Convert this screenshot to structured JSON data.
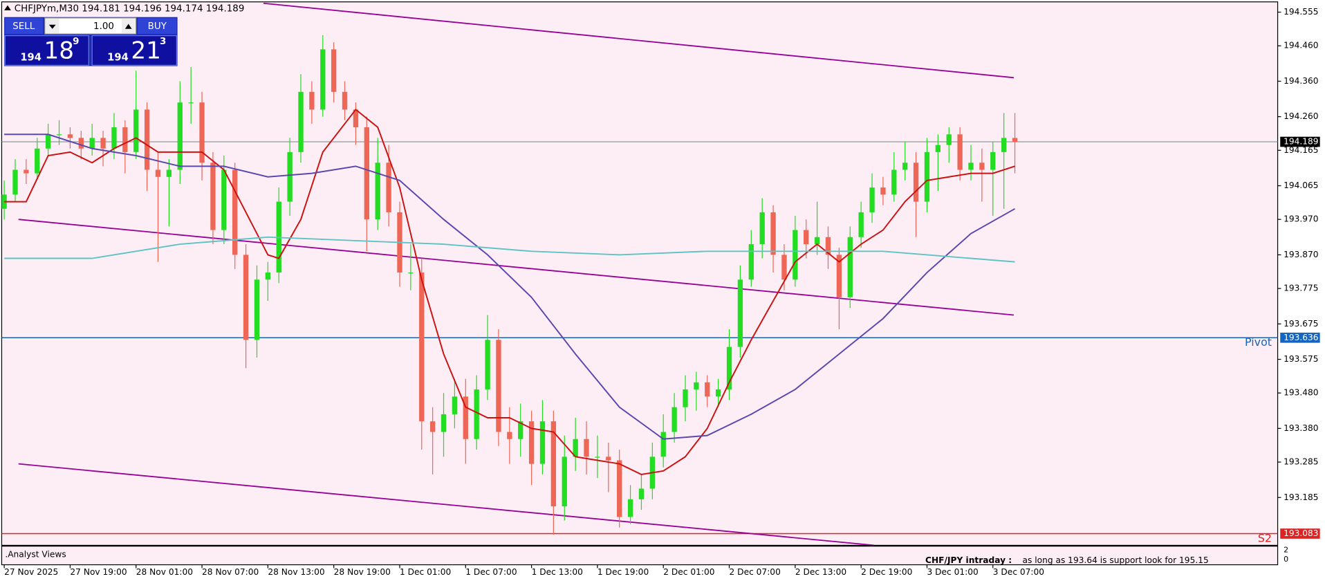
{
  "terminal": {
    "header": "CHFJPYm,M30  194.181 194.196 194.174 194.189",
    "sell": "SELL",
    "buy": "BUY",
    "lot": "1.00",
    "sell_big": "194",
    "sell_main": "18",
    "sell_sup": "9",
    "buy_big": "194",
    "buy_main": "21",
    "buy_sup": "3"
  },
  "indicator_window": {
    "title": ".Analyst Views",
    "scale_labels": [
      "2",
      "0"
    ],
    "annotation_title": "CHF/JPY intraday :",
    "annotation": "as long as 193.64 is support look for 195.15"
  },
  "chart_data": {
    "type": "candlestick",
    "up_color": "#22dd22",
    "down_color": "#ee6655",
    "ylim": [
      193.05,
      194.584
    ],
    "yticks": [
      194.555,
      {
        "value": 194.46,
        "label": "194.460"
      },
      {
        "value": 194.36,
        "label": "194.360"
      },
      {
        "value": 194.26,
        "label": "194.260"
      },
      194.165,
      194.065,
      {
        "value": 193.97,
        "label": "193.970"
      },
      {
        "value": 193.87,
        "label": "193.870"
      },
      193.775,
      193.675,
      193.575,
      {
        "value": 193.48,
        "label": "193.480"
      },
      {
        "value": 193.38,
        "label": "193.380"
      },
      193.285,
      193.185
    ],
    "categories": [
      "27 Nov 2025",
      null,
      null,
      null,
      null,
      null,
      "27 Nov 19:00",
      null,
      null,
      null,
      null,
      null,
      "28 Nov 01:00",
      null,
      null,
      null,
      null,
      null,
      "28 Nov 07:00",
      null,
      null,
      null,
      null,
      null,
      "28 Nov 13:00",
      null,
      null,
      null,
      null,
      null,
      "28 Nov 19:00",
      null,
      null,
      null,
      null,
      null,
      "1 Dec 01:00",
      null,
      null,
      null,
      null,
      null,
      "1 Dec 07:00",
      null,
      null,
      null,
      null,
      null,
      "1 Dec 13:00",
      null,
      null,
      null,
      null,
      null,
      "1 Dec 19:00",
      null,
      null,
      null,
      null,
      null,
      "2 Dec 01:00",
      null,
      null,
      null,
      null,
      null,
      "2 Dec 07:00",
      null,
      null,
      null,
      null,
      null,
      "2 Dec 13:00",
      null,
      null,
      null,
      null,
      null,
      "2 Dec 19:00",
      null,
      null,
      null,
      null,
      null,
      "3 Dec 01:00",
      null,
      null,
      null,
      null,
      null,
      "3 Dec 07:00",
      null,
      null
    ],
    "open": [
      194.0,
      194.04,
      194.11,
      194.1,
      194.17,
      194.21,
      194.21,
      194.2,
      194.17,
      194.2,
      194.17,
      194.23,
      194.16,
      194.28,
      194.11,
      194.09,
      194.11,
      194.3,
      194.3,
      194.13,
      193.94,
      194.11,
      193.87,
      193.63,
      193.8,
      193.82,
      194.02,
      194.16,
      194.33,
      194.28,
      194.45,
      194.33,
      194.28,
      194.23,
      193.97,
      194.13,
      193.99,
      193.82,
      193.82,
      193.4,
      193.37,
      193.42,
      193.47,
      193.35,
      193.49,
      193.63,
      193.37,
      193.35,
      193.4,
      193.28,
      193.4,
      193.16,
      193.3,
      193.35,
      193.3,
      193.3,
      193.29,
      193.13,
      193.18,
      193.21,
      193.3,
      193.37,
      193.44,
      193.49,
      193.51,
      193.47,
      193.49,
      193.61,
      193.8,
      193.9,
      193.99,
      193.87,
      193.8,
      193.94,
      193.9,
      193.92,
      193.87,
      193.75,
      193.92,
      193.99,
      194.06,
      194.04,
      194.11,
      194.13,
      194.02,
      194.16,
      194.18,
      194.21,
      194.11,
      194.13,
      194.11,
      194.16,
      194.2
    ],
    "high": [
      194.08,
      194.14,
      194.14,
      194.2,
      194.24,
      194.25,
      194.23,
      194.22,
      194.24,
      194.22,
      194.27,
      194.25,
      194.39,
      194.3,
      194.16,
      194.14,
      194.36,
      194.4,
      194.33,
      194.16,
      194.15,
      194.13,
      193.9,
      193.84,
      193.85,
      194.06,
      194.2,
      194.38,
      194.36,
      194.49,
      194.47,
      194.36,
      194.3,
      194.26,
      194.2,
      194.18,
      194.02,
      193.9,
      193.86,
      193.44,
      193.48,
      193.52,
      193.52,
      193.53,
      193.7,
      193.66,
      193.44,
      193.45,
      193.43,
      193.46,
      193.43,
      193.36,
      193.41,
      193.4,
      193.36,
      193.34,
      193.32,
      193.22,
      193.25,
      193.34,
      193.42,
      193.48,
      193.53,
      193.54,
      193.53,
      193.52,
      193.66,
      193.84,
      193.94,
      194.03,
      194.01,
      193.9,
      193.98,
      193.97,
      194.02,
      193.95,
      193.89,
      193.95,
      194.02,
      194.1,
      194.09,
      194.16,
      194.19,
      194.16,
      194.2,
      194.21,
      194.23,
      194.23,
      194.18,
      194.17,
      194.19,
      194.27,
      194.27
    ],
    "low": [
      193.97,
      194.02,
      194.07,
      194.08,
      194.15,
      194.18,
      194.17,
      194.14,
      194.15,
      194.12,
      194.14,
      194.1,
      194.14,
      194.05,
      193.85,
      193.95,
      194.07,
      194.24,
      194.08,
      193.9,
      193.9,
      193.83,
      193.55,
      193.58,
      193.74,
      193.79,
      193.98,
      194.13,
      194.24,
      194.26,
      194.3,
      194.25,
      194.18,
      193.88,
      193.94,
      193.95,
      193.78,
      193.77,
      193.32,
      193.25,
      193.3,
      193.38,
      193.28,
      193.32,
      193.46,
      193.33,
      193.28,
      193.3,
      193.22,
      193.25,
      193.08,
      193.12,
      193.26,
      193.25,
      193.24,
      193.2,
      193.1,
      193.11,
      193.15,
      193.18,
      193.27,
      193.34,
      193.4,
      193.43,
      193.44,
      193.44,
      193.46,
      193.58,
      193.78,
      193.86,
      193.82,
      193.77,
      193.78,
      193.86,
      193.87,
      193.83,
      193.66,
      193.72,
      193.89,
      193.96,
      194.01,
      194.02,
      194.08,
      193.92,
      193.99,
      194.05,
      194.13,
      194.08,
      194.08,
      194.02,
      193.98,
      194.0,
      194.1
    ],
    "close": [
      194.04,
      194.11,
      194.1,
      194.17,
      194.21,
      194.21,
      194.2,
      194.17,
      194.2,
      194.17,
      194.23,
      194.16,
      194.28,
      194.11,
      194.09,
      194.11,
      194.3,
      194.3,
      194.13,
      193.94,
      194.11,
      193.87,
      193.63,
      193.8,
      193.82,
      194.02,
      194.16,
      194.33,
      194.28,
      194.45,
      194.33,
      194.28,
      194.23,
      193.97,
      194.13,
      193.99,
      193.82,
      193.82,
      193.4,
      193.37,
      193.42,
      193.47,
      193.35,
      193.49,
      193.63,
      193.37,
      193.35,
      193.4,
      193.28,
      193.4,
      193.16,
      193.3,
      193.35,
      193.3,
      193.3,
      193.29,
      193.13,
      193.18,
      193.21,
      193.3,
      193.37,
      193.44,
      193.49,
      193.51,
      193.47,
      193.49,
      193.61,
      193.8,
      193.9,
      193.99,
      193.87,
      193.8,
      193.94,
      193.9,
      193.92,
      193.87,
      193.75,
      193.92,
      193.99,
      194.06,
      194.04,
      194.11,
      194.13,
      194.02,
      194.16,
      194.18,
      194.21,
      194.11,
      194.13,
      194.11,
      194.16,
      194.2,
      194.189
    ],
    "series": [
      {
        "color": "#cc1111",
        "x": [
          0,
          2,
          4,
          6,
          8,
          10,
          12,
          14,
          16,
          18,
          20,
          22,
          24,
          25,
          27,
          29,
          32,
          34,
          36,
          38,
          40,
          42,
          44,
          46,
          48,
          50,
          52,
          54,
          56,
          58,
          60,
          62,
          64,
          66,
          68,
          70,
          72,
          74,
          76,
          78,
          80,
          82,
          84,
          86,
          88,
          90,
          92
        ],
        "values": [
          194.02,
          194.02,
          194.15,
          194.16,
          194.13,
          194.17,
          194.2,
          194.16,
          194.16,
          194.16,
          194.11,
          193.99,
          193.87,
          193.86,
          193.97,
          194.16,
          194.28,
          194.23,
          194.06,
          193.8,
          193.59,
          193.44,
          193.41,
          193.41,
          193.38,
          193.37,
          193.3,
          193.29,
          193.28,
          193.25,
          193.26,
          193.3,
          193.38,
          193.51,
          193.63,
          193.74,
          193.85,
          193.9,
          193.85,
          193.9,
          193.94,
          194.02,
          194.08,
          194.09,
          194.1,
          194.1,
          194.12
        ]
      },
      {
        "color": "#5a48b0",
        "x": [
          0,
          4,
          8,
          12,
          16,
          20,
          24,
          28,
          32,
          36,
          40,
          44,
          48,
          52,
          56,
          60,
          64,
          68,
          72,
          76,
          80,
          84,
          88,
          92
        ],
        "values": [
          194.21,
          194.21,
          194.17,
          194.15,
          194.12,
          194.12,
          194.09,
          194.1,
          194.12,
          194.08,
          193.97,
          193.87,
          193.75,
          193.59,
          193.44,
          193.35,
          193.36,
          193.42,
          193.49,
          193.59,
          193.69,
          193.82,
          193.93,
          194.0
        ]
      },
      {
        "color": "#5cc4c4",
        "x": [
          0,
          8,
          16,
          24,
          32,
          40,
          48,
          56,
          64,
          72,
          80,
          88,
          92
        ],
        "values": [
          193.86,
          193.86,
          193.9,
          193.92,
          193.91,
          193.9,
          193.88,
          193.87,
          193.88,
          193.88,
          193.88,
          193.86,
          193.85
        ]
      }
    ],
    "trendlines": [
      {
        "color": "#990099",
        "x": [
          23.6,
          91.9
        ],
        "values": [
          194.58,
          194.37
        ]
      },
      {
        "color": "#990099",
        "x": [
          1.3,
          91.9
        ],
        "values": [
          193.97,
          193.7
        ]
      },
      {
        "color": "#990099",
        "x": [
          1.3,
          79.2
        ],
        "values": [
          193.28,
          193.05
        ]
      }
    ],
    "last_price": 194.189,
    "hlines": [
      {
        "name": "Pivot",
        "value": 193.636,
        "color": "#1565c0"
      },
      {
        "name": "S2",
        "value": 193.083,
        "color": "#dd2222"
      }
    ]
  }
}
